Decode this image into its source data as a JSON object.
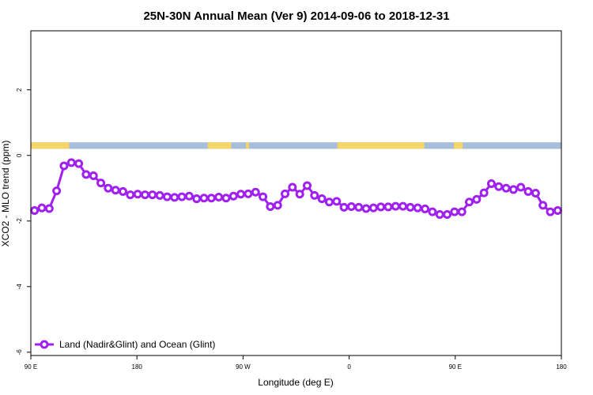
{
  "chart_data": {
    "type": "line",
    "title": "25N-30N Annual Mean (Ver 9)   2014-09-06 to 2018-12-31",
    "xlabel": "Longitude (deg E)",
    "ylabel": "XCO2 - MLO trend (ppm)",
    "xlim": [
      90,
      450
    ],
    "ylim": [
      -6.1,
      3.8
    ],
    "x_ticks": [
      {
        "value": 90,
        "label": "90 E"
      },
      {
        "value": 162,
        "label": "180"
      },
      {
        "value": 234,
        "label": "90 W"
      },
      {
        "value": 306,
        "label": "0"
      },
      {
        "value": 378,
        "label": "90 E"
      },
      {
        "value": 450,
        "label": "180"
      }
    ],
    "y_ticks": [
      {
        "value": 2,
        "label": "2"
      },
      {
        "value": 0,
        "label": "0"
      },
      {
        "value": -2,
        "label": "-2"
      },
      {
        "value": -4,
        "label": "-4"
      },
      {
        "value": -6,
        "label": "-6"
      }
    ],
    "grid": false,
    "legend_position": "bottom-left",
    "land_mask_band": {
      "y_range": [
        0.2,
        0.4
      ],
      "land_color": "#f5d56a",
      "ocean_color": "#a7bedb",
      "land_segments": [
        [
          90,
          116
        ],
        [
          210,
          226
        ],
        [
          236,
          238
        ],
        [
          298,
          357
        ],
        [
          377,
          383
        ]
      ]
    },
    "series": [
      {
        "name": "Land (Nadir&Glint) and Ocean (Glint)",
        "color": "#a020f0",
        "x": [
          92.5,
          97.5,
          102.5,
          107.5,
          112.5,
          117.5,
          122.5,
          127.5,
          132.5,
          137.5,
          142.5,
          147.5,
          152.5,
          157.5,
          162.5,
          167.5,
          172.5,
          177.5,
          182.5,
          187.5,
          192.5,
          197.5,
          202.5,
          207.5,
          212.5,
          217.5,
          222.5,
          227.5,
          232.5,
          237.5,
          242.5,
          247.5,
          252.5,
          257.5,
          262.5,
          267.5,
          272.5,
          277.5,
          282.5,
          287.5,
          292.5,
          297.5,
          302.5,
          307.5,
          312.5,
          317.5,
          322.5,
          327.5,
          332.5,
          337.5,
          342.5,
          347.5,
          352.5,
          357.5,
          362.5,
          367.5,
          372.5,
          377.5,
          382.5,
          387.5,
          392.5,
          397.5,
          402.5,
          407.5,
          412.5,
          417.5,
          422.5,
          427.5,
          432.5,
          437.5,
          442.5,
          447.5
        ],
        "values": [
          -1.68,
          -1.6,
          -1.62,
          -1.08,
          -0.32,
          -0.22,
          -0.25,
          -0.58,
          -0.62,
          -0.84,
          -1.0,
          -1.06,
          -1.1,
          -1.2,
          -1.18,
          -1.2,
          -1.2,
          -1.22,
          -1.26,
          -1.28,
          -1.26,
          -1.24,
          -1.32,
          -1.3,
          -1.3,
          -1.27,
          -1.3,
          -1.24,
          -1.18,
          -1.17,
          -1.12,
          -1.26,
          -1.56,
          -1.52,
          -1.17,
          -0.97,
          -1.18,
          -0.92,
          -1.22,
          -1.32,
          -1.42,
          -1.4,
          -1.58,
          -1.56,
          -1.58,
          -1.62,
          -1.6,
          -1.57,
          -1.57,
          -1.55,
          -1.55,
          -1.58,
          -1.6,
          -1.63,
          -1.72,
          -1.8,
          -1.8,
          -1.72,
          -1.72,
          -1.42,
          -1.34,
          -1.14,
          -0.86,
          -0.95,
          -1.0,
          -1.04,
          -0.97,
          -1.1,
          -1.15,
          -1.52,
          -1.72,
          -1.68
        ]
      }
    ]
  }
}
